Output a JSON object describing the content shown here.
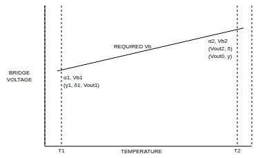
{
  "chart_data": {
    "type": "line",
    "x_label": "TEMPERATURE",
    "y_label": "BRIDGE VOLTAGE",
    "x": [
      6,
      96
    ],
    "values": [
      53.5,
      84
    ],
    "color": "#000000",
    "xlim": [
      0,
      100
    ],
    "xticks": [
      {
        "value": 8,
        "label": "T1"
      },
      {
        "value": 93,
        "label": "T2"
      }
    ],
    "ylim": [
      0,
      100
    ],
    "yticks": [],
    "tick_labels": "x",
    "grid": true,
    "annotations": [
      "REQUIRED Vb",
      "α1, Vb1",
      "(γ1, δ1, Vout1)",
      "α2, Vb2",
      "(Vout2, δ)",
      "(Vout0, γ)"
    ]
  }
}
